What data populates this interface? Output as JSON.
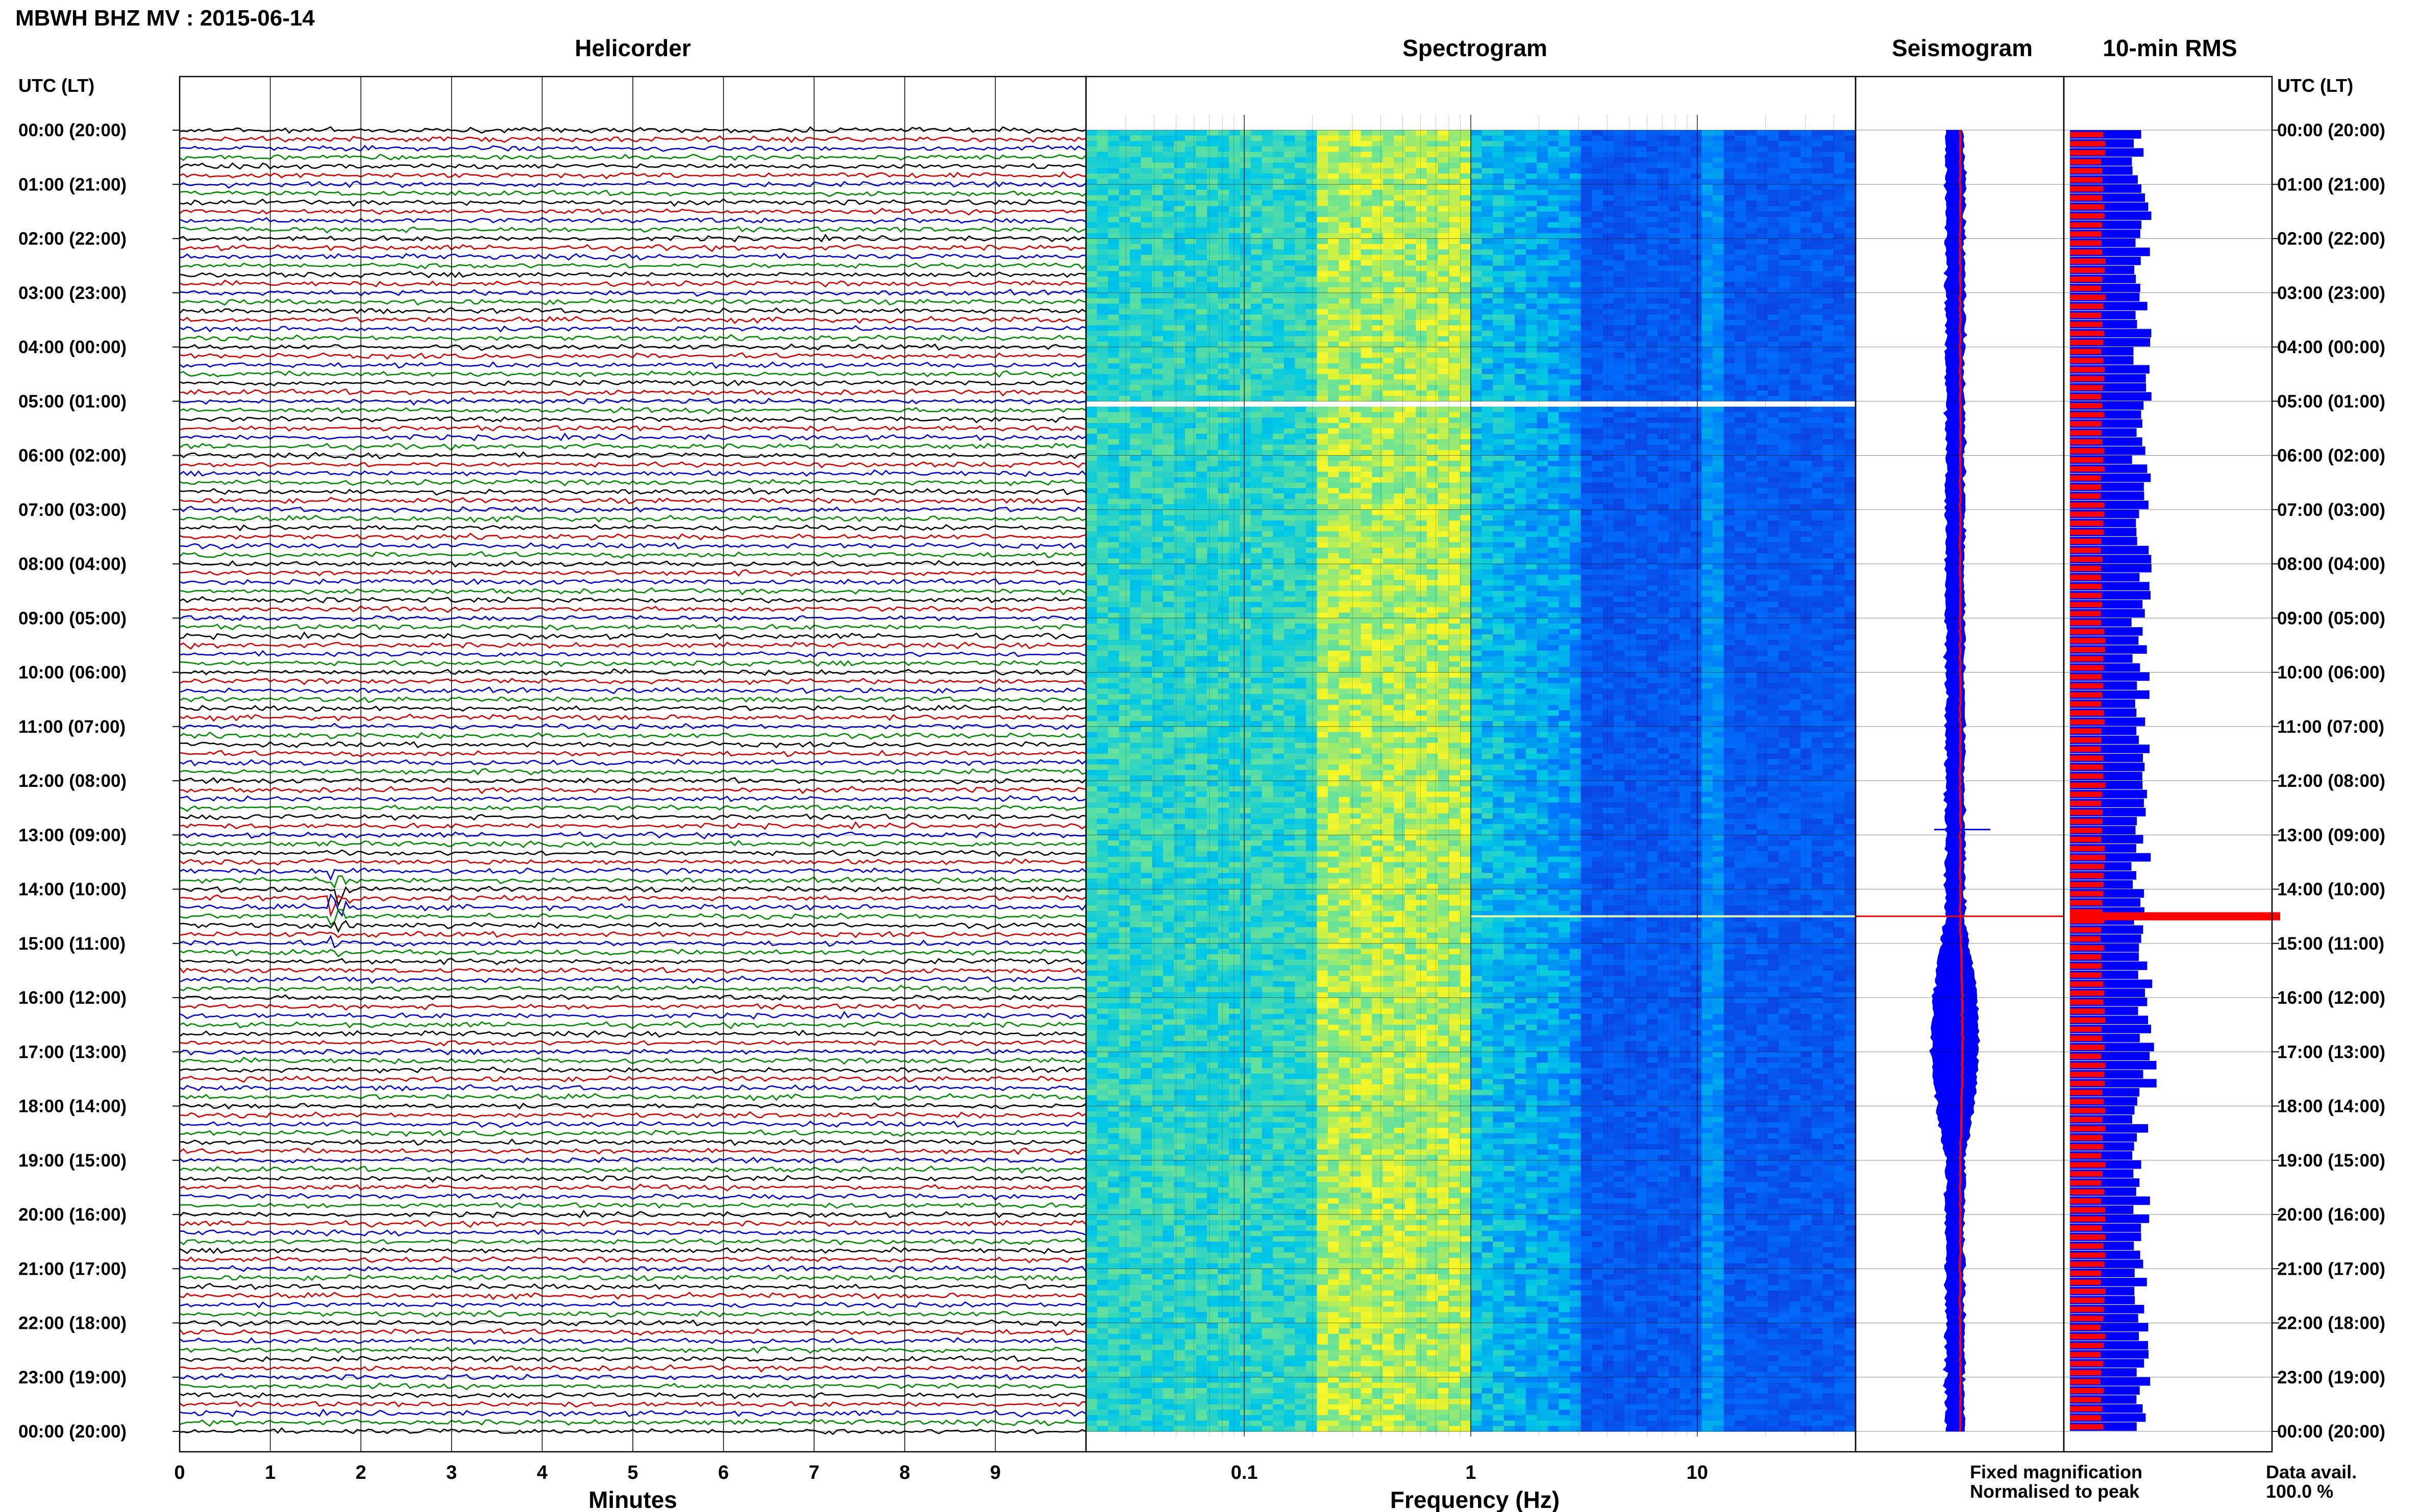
{
  "header": {
    "title": "MBWH BHZ MV : 2015-06-14",
    "utc_label_left": "UTC (LT)",
    "utc_label_right": "UTC (LT)"
  },
  "panels": {
    "helicorder": "Helicorder",
    "spectrogram": "Spectrogram",
    "seismogram": "Seismogram",
    "rms": "10-min RMS"
  },
  "axes": {
    "minutes_label": "Minutes",
    "frequency_label": "Frequency (Hz)",
    "minutes_ticks": [
      "0",
      "1",
      "2",
      "3",
      "4",
      "5",
      "6",
      "7",
      "8",
      "9"
    ],
    "frequency_ticks": [
      "0.1",
      "1",
      "10"
    ]
  },
  "time_labels": [
    "00:00 (20:00)",
    "01:00 (21:00)",
    "02:00 (22:00)",
    "03:00 (23:00)",
    "04:00 (00:00)",
    "05:00 (01:00)",
    "06:00 (02:00)",
    "07:00 (03:00)",
    "08:00 (04:00)",
    "09:00 (05:00)",
    "10:00 (06:00)",
    "11:00 (07:00)",
    "12:00 (08:00)",
    "13:00 (09:00)",
    "14:00 (10:00)",
    "15:00 (11:00)",
    "16:00 (12:00)",
    "17:00 (13:00)",
    "18:00 (14:00)",
    "19:00 (15:00)",
    "20:00 (16:00)",
    "21:00 (17:00)",
    "22:00 (18:00)",
    "23:00 (19:00)",
    "00:00 (20:00)"
  ],
  "legend": {
    "fixed": "Fixed magnification",
    "normalised": "Normalised to peak",
    "fixed_color": "#0000ff",
    "normalised_color": "#ff0000"
  },
  "availability": {
    "label": "Data avail.",
    "value": "100.0 %"
  },
  "chart_data": [
    {
      "type": "line",
      "title": "Helicorder",
      "xlabel": "Minutes",
      "xlim": [
        0,
        10
      ],
      "trace_colors": [
        "#000000",
        "#cc0000",
        "#0000cc",
        "#008800"
      ],
      "lines_per_hour": 6,
      "events": [
        {
          "time_utc": "14:10",
          "minute": 1.7,
          "color": "#008800",
          "strength": "large"
        },
        {
          "time_utc": "12:30",
          "minute": 6.35,
          "color": "#008800",
          "strength": "small"
        },
        {
          "time_utc": "14:20",
          "minute": 7.3,
          "color": "#0000cc",
          "strength": "small"
        }
      ]
    },
    {
      "type": "heatmap",
      "title": "Spectrogram",
      "xlabel": "Frequency (Hz)",
      "xscale": "log",
      "xlim": [
        0.02,
        50
      ],
      "features": [
        {
          "band_hz": [
            0.2,
            1.0
          ],
          "description": "yellow energy band"
        },
        {
          "band_hz": [
            12,
            12
          ],
          "description": "persistent narrow line"
        },
        {
          "gap_utc": "05:00"
        },
        {
          "spike_utc": "14:30"
        }
      ]
    },
    {
      "type": "line",
      "title": "Seismogram",
      "series": [
        {
          "name": "Fixed magnification",
          "color": "#0000ff"
        },
        {
          "name": "Normalised to peak",
          "color": "#ff0000"
        }
      ],
      "peak_utc": "14:30"
    },
    {
      "type": "bar",
      "title": "10-min RMS",
      "series": [
        {
          "name": "Fixed magnification",
          "color": "#0000ff"
        },
        {
          "name": "Normalised to peak",
          "color": "#ff0000"
        }
      ],
      "peak_utc": "14:30"
    }
  ]
}
